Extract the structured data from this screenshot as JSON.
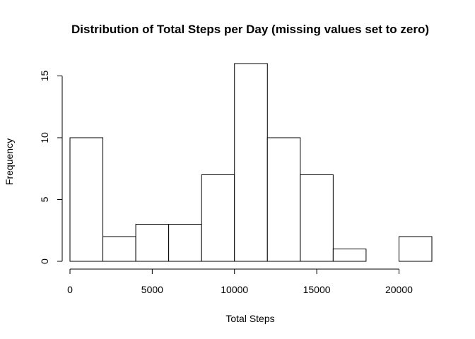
{
  "chart_data": {
    "type": "bar",
    "title": "Distribution of Total Steps per Day (missing values set to zero)",
    "xlabel": "Total Steps",
    "ylabel": "Frequency",
    "bin_edges": [
      0,
      2000,
      4000,
      6000,
      8000,
      10000,
      12000,
      14000,
      16000,
      18000,
      20000,
      22000
    ],
    "values": [
      10,
      2,
      3,
      3,
      7,
      16,
      10,
      7,
      1,
      0,
      2
    ],
    "xlim": [
      0,
      22000
    ],
    "ylim": [
      0,
      16
    ],
    "x_ticks": [
      0,
      5000,
      10000,
      15000,
      20000
    ],
    "x_tick_labels": [
      "0",
      "5000",
      "10000",
      "15000",
      "20000"
    ],
    "y_ticks": [
      0,
      5,
      10,
      15
    ],
    "y_tick_labels": [
      "0",
      "5",
      "10",
      "15"
    ],
    "grid": false,
    "bar_fill": "#ffffff",
    "bar_stroke": "#000000"
  }
}
